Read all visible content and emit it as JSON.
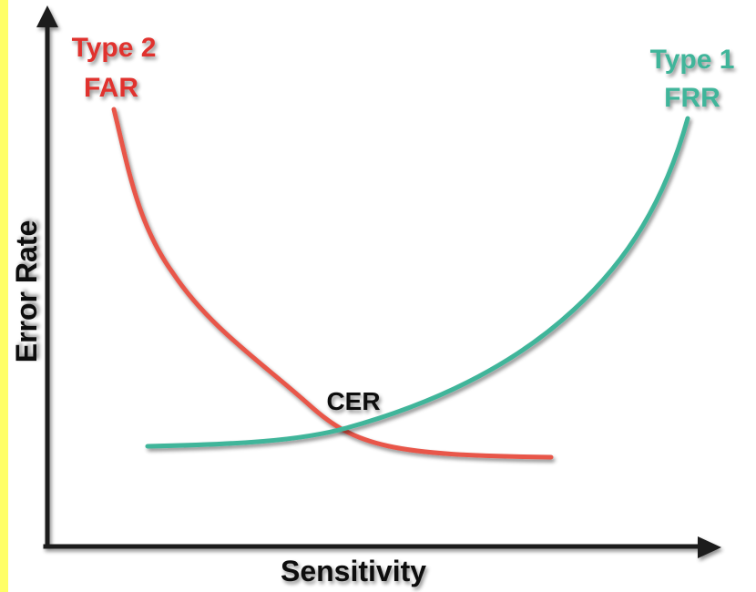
{
  "colors": {
    "background": "#ffffff",
    "left_strip": "#ffff66",
    "axis": "#1a1a1a",
    "far_curve": "#e8564a",
    "frr_curve": "#3fb59a",
    "far_label": "#e0312e",
    "frr_label": "#3fb59a",
    "text": "#111111"
  },
  "axes": {
    "x_label": "Sensitivity",
    "y_label": "Error Rate"
  },
  "curves": {
    "far": {
      "line1": "Type 2",
      "line2": "FAR"
    },
    "frr": {
      "line1": "Type 1",
      "line2": "FRR"
    }
  },
  "intersection_label": "CER"
}
